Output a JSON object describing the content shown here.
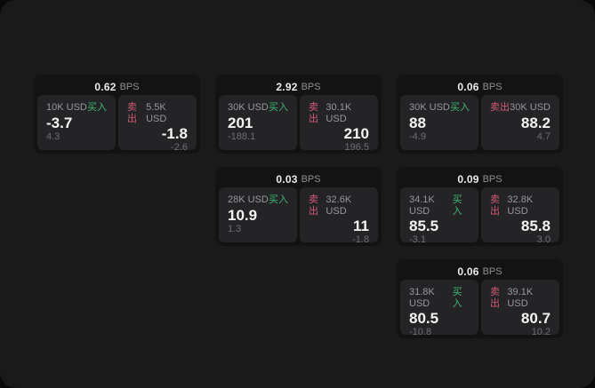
{
  "labels": {
    "bps_unit": "BPS",
    "buy": "买入",
    "sell": "卖出"
  },
  "colors": {
    "buy_green": "#3dba75",
    "sell_red": "#d15a74",
    "window_bg": "#1a1a1b",
    "card_bg": "#131314",
    "panel_bg": "#242427"
  },
  "cards": [
    {
      "bps": "0.62",
      "buy": {
        "amount": "10K USD",
        "side": "买入",
        "value": "-3.7",
        "delta": "4.3"
      },
      "sell": {
        "side": "卖出",
        "amount": "5.5K USD",
        "value": "-1.8",
        "delta": "-2.6"
      }
    },
    {
      "bps": "2.92",
      "buy": {
        "amount": "30K USD",
        "side": "买入",
        "value": "201",
        "delta": "-188.1"
      },
      "sell": {
        "side": "卖出",
        "amount": "30.1K USD",
        "value": "210",
        "delta": "196.5"
      }
    },
    {
      "bps": "0.06",
      "buy": {
        "amount": "30K USD",
        "side": "买入",
        "value": "88",
        "delta": "-4.9"
      },
      "sell": {
        "side": "卖出",
        "amount": "30K USD",
        "value": "88.2",
        "delta": "4.7"
      }
    },
    {
      "bps": "0.03",
      "buy": {
        "amount": "28K USD",
        "side": "买入",
        "value": "10.9",
        "delta": "1.3"
      },
      "sell": {
        "side": "卖出",
        "amount": "32.6K USD",
        "value": "11",
        "delta": "-1.8"
      }
    },
    {
      "bps": "0.09",
      "buy": {
        "amount": "34.1K USD",
        "side": "买入",
        "value": "85.5",
        "delta": "-3.1"
      },
      "sell": {
        "side": "卖出",
        "amount": "32.8K USD",
        "value": "85.8",
        "delta": "3.0"
      }
    },
    {
      "bps": "0.06",
      "buy": {
        "amount": "31.8K USD",
        "side": "买入",
        "value": "80.5",
        "delta": "-10.8"
      },
      "sell": {
        "side": "卖出",
        "amount": "39.1K USD",
        "value": "80.7",
        "delta": "10.2"
      }
    }
  ]
}
